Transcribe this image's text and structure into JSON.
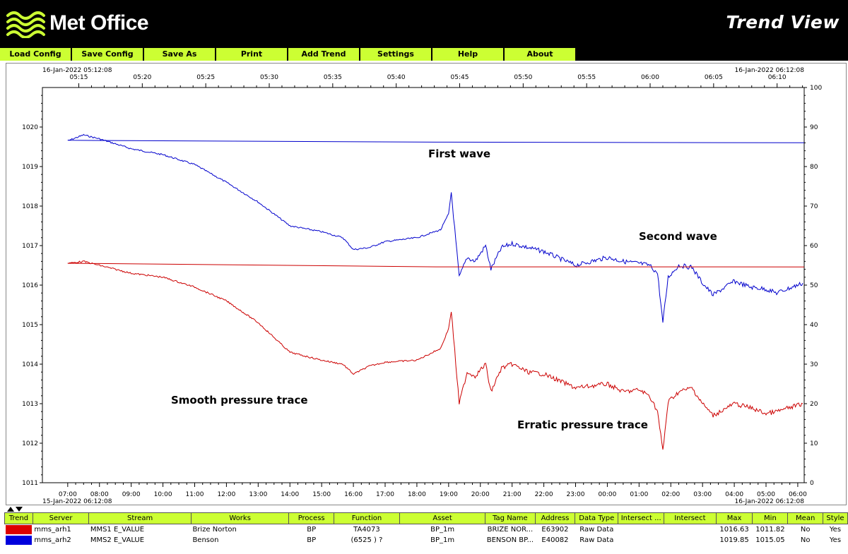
{
  "header": {
    "logo_text": "Met Office",
    "title": "Trend View"
  },
  "menu": [
    {
      "label": "Load Config"
    },
    {
      "label": "Save Config"
    },
    {
      "label": "Save As"
    },
    {
      "label": "Print"
    },
    {
      "label": "Add Trend"
    },
    {
      "label": "Settings"
    },
    {
      "label": "Help"
    },
    {
      "label": "About"
    }
  ],
  "chart": {
    "top_left_label": "16-Jan-2022 05:12:08",
    "top_right_label": "16-Jan-2022 06:12:08",
    "bottom_left_label": "15-Jan-2022 06:12:08",
    "bottom_right_label": "16-Jan-2022 06:12:08",
    "top_ticks": [
      "05:15",
      "05:20",
      "05:25",
      "05:30",
      "05:35",
      "05:40",
      "05:45",
      "05:50",
      "05:55",
      "06:00",
      "06:05",
      "06:10"
    ],
    "bottom_ticks": [
      "07:00",
      "08:00",
      "09:00",
      "10:00",
      "11:00",
      "12:00",
      "13:00",
      "14:00",
      "15:00",
      "16:00",
      "17:00",
      "18:00",
      "19:00",
      "20:00",
      "21:00",
      "22:00",
      "23:00",
      "00:00",
      "01:00",
      "02:00",
      "03:00",
      "04:00",
      "05:00",
      "06:00"
    ],
    "left_ticks": [
      "1011",
      "1012",
      "1013",
      "1014",
      "1015",
      "1016",
      "1017",
      "1018",
      "1019",
      "1020"
    ],
    "right_ticks": [
      "0",
      "10",
      "20",
      "30",
      "40",
      "50",
      "60",
      "70",
      "80",
      "90",
      "100"
    ],
    "annotations": {
      "first_wave": "First wave",
      "second_wave": "Second wave",
      "smooth": "Smooth pressure trace",
      "erratic": "Erratic pressure trace"
    },
    "colors": {
      "series1": "#cc0000",
      "series2": "#0000cc"
    }
  },
  "chart_data": {
    "type": "line",
    "title": "",
    "xlabel": "",
    "ylabel": "",
    "x_range": [
      "15-Jan-2022 06:12:08",
      "16-Jan-2022 06:12:08"
    ],
    "ylim": [
      1011,
      1021
    ],
    "y2lim": [
      0,
      100
    ],
    "grid": false,
    "series": [
      {
        "name": "mms_arh2",
        "color": "#0000cc",
        "x": [
          "06:12",
          "07:00",
          "07:30",
          "08:00",
          "09:00",
          "10:00",
          "11:00",
          "12:00",
          "13:00",
          "14:00",
          "15:00",
          "15:40",
          "16:00",
          "16:30",
          "17:00",
          "18:00",
          "18:45",
          "19:00",
          "19:05",
          "19:20",
          "19:35",
          "19:50",
          "20:10",
          "20:20",
          "20:40",
          "21:00",
          "21:30",
          "22:00",
          "23:00",
          "00:00",
          "00:30",
          "01:00",
          "01:20",
          "01:35",
          "01:45",
          "01:55",
          "02:15",
          "02:40",
          "03:00",
          "03:20",
          "04:00",
          "04:30",
          "05:00",
          "05:20",
          "06:00"
        ],
        "values": [
          1019.6,
          1019.65,
          1019.8,
          1019.7,
          1019.45,
          1019.3,
          1019.05,
          1018.6,
          1018.1,
          1017.5,
          1017.35,
          1017.2,
          1016.9,
          1016.95,
          1017.1,
          1017.2,
          1017.4,
          1017.8,
          1018.35,
          1016.2,
          1016.7,
          1016.6,
          1017.0,
          1016.4,
          1016.95,
          1017.05,
          1016.95,
          1016.85,
          1016.5,
          1016.7,
          1016.6,
          1016.55,
          1016.5,
          1016.3,
          1015.05,
          1016.2,
          1016.5,
          1016.45,
          1016.05,
          1015.75,
          1016.1,
          1015.95,
          1015.9,
          1015.8,
          1016.05
        ]
      },
      {
        "name": "mms_arh1",
        "color": "#cc0000",
        "x": [
          "06:12",
          "07:00",
          "07:30",
          "08:00",
          "09:00",
          "10:00",
          "11:00",
          "12:00",
          "13:00",
          "14:00",
          "15:00",
          "15:40",
          "16:00",
          "16:30",
          "17:00",
          "18:00",
          "18:45",
          "19:00",
          "19:05",
          "19:20",
          "19:35",
          "19:50",
          "20:10",
          "20:20",
          "20:40",
          "21:00",
          "21:30",
          "22:00",
          "23:00",
          "00:00",
          "00:30",
          "01:00",
          "01:20",
          "01:35",
          "01:45",
          "01:55",
          "02:15",
          "02:40",
          "03:00",
          "03:20",
          "04:00",
          "04:30",
          "05:00",
          "05:20",
          "06:00"
        ],
        "values": [
          1016.45,
          1016.55,
          1016.6,
          1016.5,
          1016.3,
          1016.2,
          1015.95,
          1015.6,
          1015.05,
          1014.3,
          1014.1,
          1014.0,
          1013.75,
          1013.95,
          1014.05,
          1014.1,
          1014.4,
          1014.9,
          1015.35,
          1013.0,
          1013.8,
          1013.7,
          1014.0,
          1013.3,
          1013.9,
          1014.0,
          1013.8,
          1013.75,
          1013.4,
          1013.5,
          1013.3,
          1013.35,
          1013.2,
          1012.8,
          1011.8,
          1013.05,
          1013.3,
          1013.4,
          1013.0,
          1012.7,
          1013.0,
          1012.9,
          1012.75,
          1012.8,
          1013.0
        ]
      }
    ],
    "annotations": [
      "First wave",
      "Second wave",
      "Smooth pressure trace",
      "Erratic pressure trace"
    ]
  },
  "table": {
    "columns": [
      "Trend",
      "Server",
      "Stream",
      "Works",
      "Process",
      "Function",
      "Asset",
      "Tag Name",
      "Address",
      "Data Type",
      "Intersect ...",
      "Intersect",
      "Max",
      "Min",
      "Mean",
      "Style"
    ],
    "rows": [
      {
        "color": "#dd0000",
        "cells": [
          "mms_arh1",
          "MMS1 E_VALUE",
          "Brize Norton",
          "BP",
          "TA4073",
          "BP_1m",
          "BRIZE NOR...",
          "E63902",
          "Raw Data",
          "",
          "",
          "1016.63",
          "1011.82",
          "No",
          "Yes"
        ]
      },
      {
        "color": "#0000dd",
        "cells": [
          "mms_arh2",
          "MMS2 E_VALUE",
          "Benson",
          "BP",
          "(6525 ) ?",
          "BP_1m",
          "BENSON BP...",
          "E40082",
          "Raw Data",
          "",
          "",
          "1019.85",
          "1015.05",
          "No",
          "Yes"
        ]
      }
    ]
  }
}
